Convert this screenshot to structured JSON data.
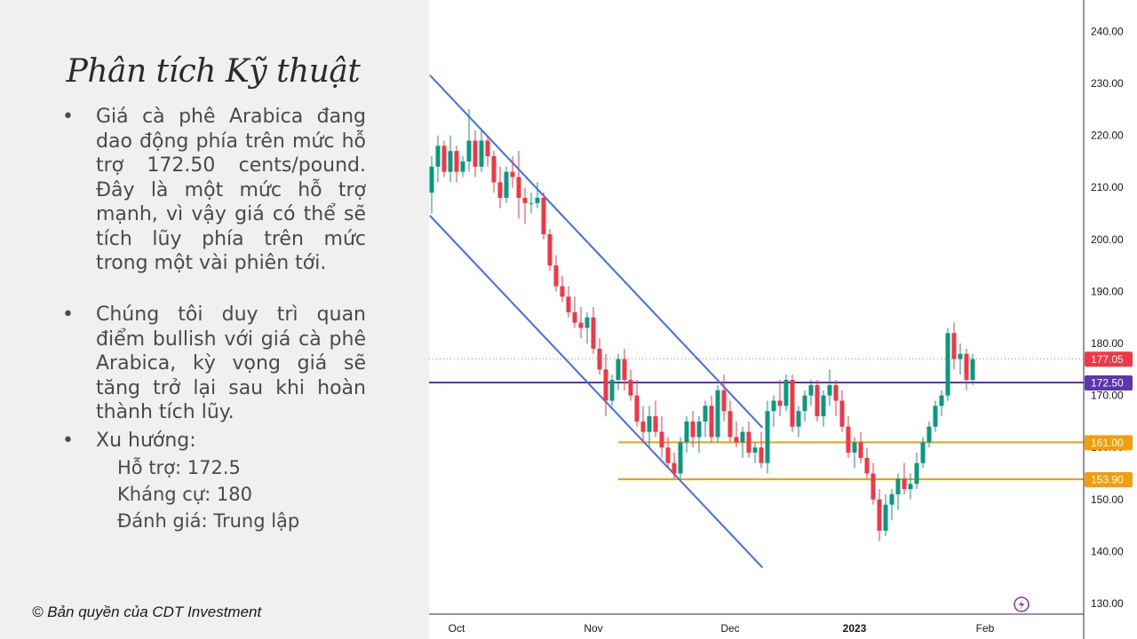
{
  "left": {
    "title": "Phân tích Kỹ thuật",
    "bullets": [
      "Giá cà phê Arabica đang dao động phía trên mức hỗ trợ 172.50 cents/pound. Đây là một mức hỗ trợ mạnh, vì vậy giá có thể sẽ tích lũy phía trên mức trong một vài phiên tới.",
      "Chúng tôi duy trì quan điểm bullish với giá cà phê Arabica, kỳ vọng giá sẽ tăng trở lại sau khi hoàn thành tích lũy.",
      "Xu hướng:"
    ],
    "bullet_symbol": "•",
    "trend": [
      "Hỗ trợ: 172.5",
      "Kháng cự: 180",
      "Đánh giá: Trung lập"
    ],
    "copyright": "© Bản quyền của CDT Investment"
  },
  "chart_data": {
    "type": "candlestick",
    "ylim": [
      127.5,
      246
    ],
    "y_ticks": [
      "130.00",
      "140.00",
      "150.00",
      "160.00",
      "170.00",
      "180.00",
      "190.00",
      "200.00",
      "210.00",
      "220.00",
      "230.00",
      "240.00"
    ],
    "x_ticks": [
      {
        "label": "Oct",
        "index": 4
      },
      {
        "label": "Nov",
        "index": 26
      },
      {
        "label": "Dec",
        "index": 48
      },
      {
        "label": "2023",
        "index": 68
      },
      {
        "label": "Feb",
        "index": 89
      }
    ],
    "candles": [
      [
        209,
        216,
        205,
        214
      ],
      [
        214,
        220,
        211,
        218
      ],
      [
        218,
        219,
        212,
        213
      ],
      [
        213,
        220,
        211,
        217
      ],
      [
        217,
        218,
        211,
        213
      ],
      [
        213,
        216,
        212,
        215
      ],
      [
        215,
        225,
        213,
        219
      ],
      [
        219,
        221,
        212,
        214
      ],
      [
        214,
        221,
        213,
        219
      ],
      [
        219,
        220,
        214,
        216
      ],
      [
        216,
        217,
        209,
        211
      ],
      [
        211,
        214,
        206,
        208
      ],
      [
        208,
        214,
        207,
        213
      ],
      [
        213,
        216,
        210,
        212
      ],
      [
        212,
        217,
        204,
        208
      ],
      [
        208,
        210,
        203,
        207
      ],
      [
        207,
        209,
        205,
        207
      ],
      [
        207,
        211,
        206,
        208
      ],
      [
        208,
        209,
        200,
        201
      ],
      [
        201,
        202,
        194,
        195
      ],
      [
        195,
        197,
        190,
        191
      ],
      [
        191,
        193,
        188,
        189
      ],
      [
        189,
        191,
        185,
        186
      ],
      [
        186,
        189,
        183,
        184
      ],
      [
        184,
        187,
        181,
        183
      ],
      [
        183,
        186,
        180,
        185
      ],
      [
        185,
        187,
        178,
        179
      ],
      [
        179,
        181,
        174,
        175
      ],
      [
        175,
        178,
        166,
        169
      ],
      [
        169,
        174,
        168,
        173
      ],
      [
        173,
        178,
        171,
        177
      ],
      [
        177,
        179,
        171,
        173
      ],
      [
        173,
        175,
        169,
        170
      ],
      [
        170,
        173,
        164,
        165
      ],
      [
        165,
        168,
        161,
        163
      ],
      [
        163,
        168,
        160,
        166
      ],
      [
        166,
        169,
        162,
        163
      ],
      [
        163,
        166,
        158,
        160
      ],
      [
        160,
        162,
        156,
        157
      ],
      [
        157,
        159,
        154,
        155
      ],
      [
        155,
        162,
        154,
        161
      ],
      [
        161,
        166,
        159,
        165
      ],
      [
        165,
        167,
        160,
        162
      ],
      [
        162,
        166,
        159,
        165
      ],
      [
        165,
        169,
        162,
        168
      ],
      [
        168,
        170,
        161,
        162
      ],
      [
        162,
        172,
        161,
        171
      ],
      [
        171,
        174,
        165,
        167
      ],
      [
        167,
        169,
        161,
        162
      ],
      [
        162,
        165,
        160,
        161
      ],
      [
        161,
        164,
        158,
        163
      ],
      [
        163,
        165,
        158,
        159
      ],
      [
        159,
        161,
        157,
        160
      ],
      [
        160,
        163,
        156,
        157
      ],
      [
        157,
        169,
        155,
        167
      ],
      [
        167,
        170,
        164,
        169
      ],
      [
        169,
        173,
        166,
        168
      ],
      [
        168,
        174,
        167,
        173
      ],
      [
        173,
        174,
        163,
        164
      ],
      [
        164,
        168,
        162,
        167
      ],
      [
        167,
        171,
        165,
        170
      ],
      [
        170,
        173,
        168,
        172
      ],
      [
        172,
        173,
        165,
        166
      ],
      [
        166,
        171,
        164,
        170
      ],
      [
        170,
        175,
        168,
        172
      ],
      [
        172,
        173,
        166,
        169
      ],
      [
        169,
        171,
        163,
        164
      ],
      [
        164,
        166,
        158,
        159
      ],
      [
        159,
        162,
        156,
        161
      ],
      [
        161,
        163,
        157,
        158
      ],
      [
        158,
        160,
        154,
        155
      ],
      [
        155,
        157,
        149,
        150
      ],
      [
        150,
        152,
        142,
        144
      ],
      [
        144,
        151,
        143,
        149
      ],
      [
        149,
        152,
        146,
        151
      ],
      [
        151,
        155,
        148,
        154
      ],
      [
        154,
        157,
        151,
        152
      ],
      [
        152,
        155,
        150,
        153
      ],
      [
        153,
        159,
        152,
        157
      ],
      [
        157,
        162,
        156,
        161
      ],
      [
        161,
        165,
        160,
        164
      ],
      [
        164,
        169,
        163,
        168
      ],
      [
        168,
        171,
        166,
        170
      ],
      [
        170,
        183,
        169,
        182
      ],
      [
        182,
        184,
        175,
        177
      ],
      [
        177,
        180,
        174,
        178
      ],
      [
        178,
        179,
        171,
        173
      ],
      [
        173,
        178,
        172,
        177
      ]
    ],
    "channel_lines": [
      {
        "name": "upper channel",
        "from": {
          "index": -0.3,
          "value": 231.6
        },
        "to": {
          "index": 53.2,
          "value": 163.8
        }
      },
      {
        "name": "lower channel",
        "from": {
          "index": -0.3,
          "value": 204.6
        },
        "to": {
          "index": 53.2,
          "value": 136.9
        }
      }
    ],
    "levels": [
      {
        "value": 172.5,
        "label": "172.50",
        "color": "#5e35b1",
        "start_index": -1
      },
      {
        "value": 161.0,
        "label": "161.00",
        "color": "#f59d0b",
        "start_index": 30
      },
      {
        "value": 153.9,
        "label": "153.90",
        "color": "#f59d0b",
        "start_index": 30
      }
    ],
    "last_price": {
      "value": 177.05,
      "label": "177.05",
      "color": "#f23645"
    },
    "colors": {
      "up": "#089981",
      "down": "#f23645",
      "channel": "#3d6ef5",
      "grid": "none"
    },
    "indicator_icon": "lightning-icon"
  }
}
